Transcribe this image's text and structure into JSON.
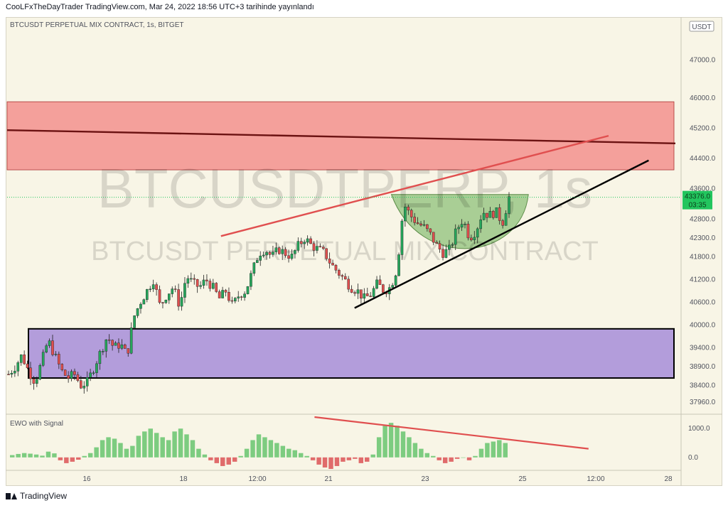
{
  "header": {
    "publisher": "CooLFxTheDayTrader",
    "site": "TradingView.com",
    "published_text": "Mar 24, 2022 18:56 UTC+3 tarihinde yayınlandı"
  },
  "footer": {
    "brand": "TradingView"
  },
  "colors": {
    "background": "#f8f5e6",
    "up": "#26a65b",
    "down": "#e04f4f",
    "resistance_zone": "#f4a09b",
    "support_zone": "#b39ddb",
    "cup": "#8fc07a",
    "price_label": "#22c55e"
  },
  "chart_data": [
    {
      "type": "candlestick",
      "title": "BTCUSDT PERPETUAL MIX CONTRACT, 1s, BITGET",
      "watermark_symbol": "BTCUSDTPERP, 1s",
      "watermark_name": "BTCUSDT PERPETUAL MIX CONTRACT",
      "currency": "USDT",
      "last_price": "43376.0",
      "countdown": "03:35",
      "ylim": [
        37700,
        48100
      ],
      "y_ticks": [
        "47000.0",
        "46000.0",
        "45200.0",
        "44400.0",
        "43600.0",
        "42800.0",
        "42300.0",
        "41800.0",
        "41200.0",
        "40600.0",
        "40000.0",
        "39400.0",
        "38900.0",
        "38400.0",
        "37960.0"
      ],
      "x_ticks": [
        "16",
        "18",
        "12:00",
        "21",
        "23",
        "25",
        "12:00",
        "28"
      ],
      "grid": false,
      "close_path": [
        38700,
        38900,
        39200,
        38800,
        38500,
        39000,
        39600,
        39200,
        38800,
        38600,
        38700,
        38400,
        38500,
        38900,
        39300,
        39700,
        39400,
        39500,
        39200,
        40200,
        40600,
        40900,
        41200,
        40500,
        40800,
        41000,
        40500,
        41300,
        41100,
        41000,
        41200,
        41000,
        40700,
        40900,
        40500,
        40800,
        40900,
        41400,
        41900,
        42000,
        41800,
        42000,
        41900,
        41800,
        42100,
        42300,
        42100,
        42000,
        41900,
        41600,
        41400,
        41200,
        41000,
        40900,
        40700,
        40800,
        41100,
        40900,
        41000,
        41500,
        43200,
        42900,
        42700,
        42600,
        42400,
        42100,
        41900,
        42000,
        42500,
        42800,
        42300,
        42500,
        43000,
        42900,
        43000,
        42700,
        43376
      ],
      "annotations": [
        {
          "type": "zone",
          "label": "resistance",
          "y": [
            44100,
            45900
          ]
        },
        {
          "type": "zone",
          "label": "support",
          "y": [
            38600,
            39900
          ]
        },
        {
          "type": "trendline",
          "from": [
            0.0,
            45150
          ],
          "to": [
            1.0,
            44800
          ],
          "color": "#6b1212"
        },
        {
          "type": "trendline",
          "from": [
            0.32,
            42350
          ],
          "to": [
            0.9,
            45000
          ],
          "color": "#e04f4f"
        },
        {
          "type": "trendline",
          "from": [
            0.52,
            40450
          ],
          "to": [
            0.96,
            44350
          ],
          "color": "#000000"
        },
        {
          "type": "cup",
          "x": [
            0.575,
            0.78
          ],
          "top": 43450,
          "bottom": 41780
        }
      ]
    },
    {
      "type": "bar",
      "title": "EWO with Signal",
      "ylim": [
        -400,
        1450
      ],
      "y_ticks": [
        "1000.0",
        "0.0"
      ],
      "values": [
        80,
        120,
        150,
        130,
        100,
        60,
        200,
        140,
        -100,
        -200,
        -150,
        -80,
        50,
        150,
        350,
        600,
        700,
        650,
        500,
        300,
        400,
        750,
        900,
        1000,
        850,
        700,
        600,
        900,
        1000,
        800,
        600,
        300,
        100,
        -100,
        -200,
        -300,
        -250,
        -150,
        50,
        300,
        600,
        800,
        700,
        600,
        500,
        400,
        300,
        250,
        150,
        50,
        -100,
        -250,
        -350,
        -400,
        -300,
        -150,
        -100,
        -50,
        -200,
        -150,
        100,
        700,
        1100,
        1200,
        1100,
        900,
        700,
        500,
        300,
        150,
        50,
        -100,
        -200,
        -150,
        -50,
        0,
        -100,
        50,
        300,
        500,
        550,
        600,
        500
      ],
      "annotations": [
        {
          "type": "trendline",
          "from": [
            0.46,
            1400
          ],
          "to": [
            0.87,
            300
          ],
          "color": "#e04f4f"
        }
      ]
    }
  ]
}
